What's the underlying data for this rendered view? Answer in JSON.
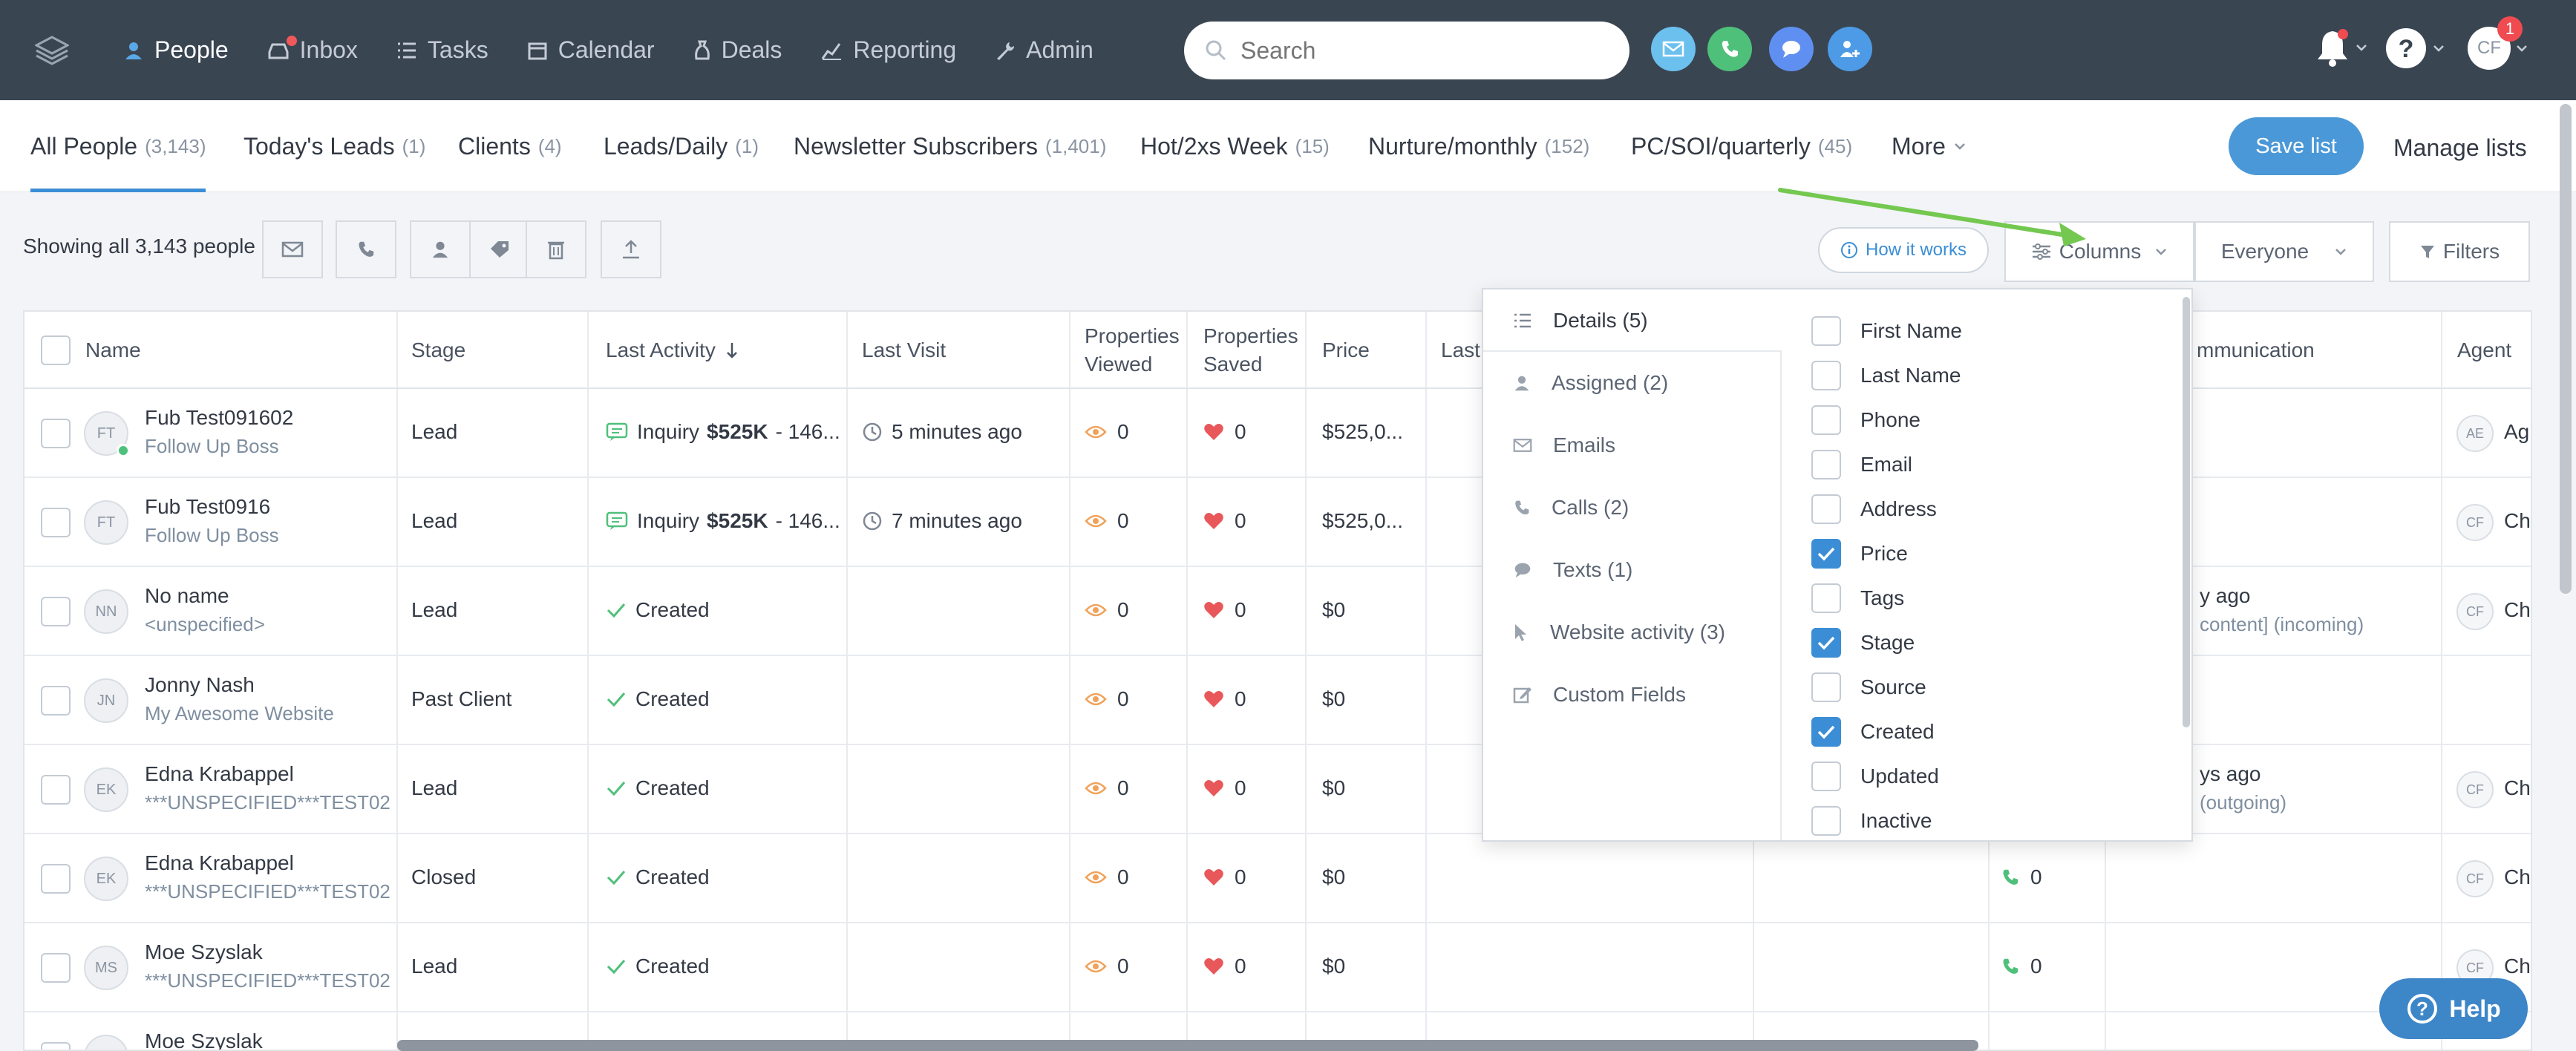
{
  "nav": {
    "items": [
      {
        "label": "People",
        "icon": "person-icon"
      },
      {
        "label": "Inbox",
        "icon": "inbox-icon"
      },
      {
        "label": "Tasks",
        "icon": "tasks-icon"
      },
      {
        "label": "Calendar",
        "icon": "calendar-icon"
      },
      {
        "label": "Deals",
        "icon": "deals-icon"
      },
      {
        "label": "Reporting",
        "icon": "reporting-icon"
      },
      {
        "label": "Admin",
        "icon": "admin-icon"
      }
    ],
    "search_placeholder": "Search",
    "avatar_initials": "CF",
    "avatar_badge": "1"
  },
  "tabs": [
    {
      "label": "All People",
      "count": "(3,143)"
    },
    {
      "label": "Today's Leads",
      "count": "(1)"
    },
    {
      "label": "Clients",
      "count": "(4)"
    },
    {
      "label": "Leads/Daily",
      "count": "(1)"
    },
    {
      "label": "Newsletter Subscribers",
      "count": "(1,401)"
    },
    {
      "label": "Hot/2xs Week",
      "count": "(15)"
    },
    {
      "label": "Nurture/monthly",
      "count": "(152)"
    },
    {
      "label": "PC/SOI/quarterly",
      "count": "(45)"
    },
    {
      "label": "More",
      "count": ""
    }
  ],
  "save_list_label": "Save list",
  "manage_lists_label": "Manage lists",
  "toolbar": {
    "showing": "Showing all 3,143 people",
    "how_it_works": "How it works",
    "columns": "Columns",
    "everyone": "Everyone",
    "filters": "Filters"
  },
  "columns": {
    "name": "Name",
    "stage": "Stage",
    "last_activity": "Last Activity",
    "last_visit": "Last Visit",
    "properties_viewed_1": "Properties",
    "properties_viewed_2": "Viewed",
    "properties_saved_1": "Properties",
    "properties_saved_2": "Saved",
    "price": "Price",
    "last_partial": "Last",
    "communication_partial": "mmunication",
    "agent": "Agent"
  },
  "rows": [
    {
      "initials": "FT",
      "name": "Fub Test091602",
      "source": "Follow Up Boss",
      "stage": "Lead",
      "activity_kind": "Inquiry",
      "activity_amount": "$525K",
      "activity_rest": "- 146...",
      "last_visit": "5 minutes ago",
      "viewed": "0",
      "saved": "0",
      "price": "$525,0...",
      "comm_1": "",
      "comm_2": "",
      "calls": "",
      "agent": "AE",
      "agent_name": "Ag",
      "online": true
    },
    {
      "initials": "FT",
      "name": "Fub Test0916",
      "source": "Follow Up Boss",
      "stage": "Lead",
      "activity_kind": "Inquiry",
      "activity_amount": "$525K",
      "activity_rest": "- 146...",
      "last_visit": "7 minutes ago",
      "viewed": "0",
      "saved": "0",
      "price": "$525,0...",
      "comm_1": "",
      "comm_2": "",
      "calls": "",
      "agent": "CF",
      "agent_name": "Ch",
      "online": false
    },
    {
      "initials": "NN",
      "name": "No name",
      "source": "<unspecified>",
      "stage": "Lead",
      "activity_kind": "Created",
      "activity_amount": "",
      "activity_rest": "",
      "last_visit": "",
      "viewed": "0",
      "saved": "0",
      "price": "$0",
      "comm_1": "y ago",
      "comm_2": "content] (incoming)",
      "calls": "",
      "agent": "CF",
      "agent_name": "Ch",
      "online": false
    },
    {
      "initials": "JN",
      "name": "Jonny Nash",
      "source": "My Awesome Website",
      "stage": "Past Client",
      "activity_kind": "Created",
      "activity_amount": "",
      "activity_rest": "",
      "last_visit": "",
      "viewed": "0",
      "saved": "0",
      "price": "$0",
      "comm_1": "",
      "comm_2": "",
      "calls": "",
      "agent": "",
      "agent_name": "",
      "online": false
    },
    {
      "initials": "EK",
      "name": "Edna Krabappel",
      "source": "***UNSPECIFIED***TEST02",
      "stage": "Lead",
      "activity_kind": "Created",
      "activity_amount": "",
      "activity_rest": "",
      "last_visit": "",
      "viewed": "0",
      "saved": "0",
      "price": "$0",
      "comm_1": "ys ago",
      "comm_2": "(outgoing)",
      "calls": "",
      "agent": "CF",
      "agent_name": "Ch",
      "online": false
    },
    {
      "initials": "EK",
      "name": "Edna Krabappel",
      "source": "***UNSPECIFIED***TEST02",
      "stage": "Closed",
      "activity_kind": "Created",
      "activity_amount": "",
      "activity_rest": "",
      "last_visit": "",
      "viewed": "0",
      "saved": "0",
      "price": "$0",
      "comm_1": "",
      "comm_2": "",
      "calls": "0",
      "agent": "CF",
      "agent_name": "Ch",
      "online": false
    },
    {
      "initials": "MS",
      "name": "Moe Szyslak",
      "source": "***UNSPECIFIED***TEST02",
      "stage": "Lead",
      "activity_kind": "Created",
      "activity_amount": "",
      "activity_rest": "",
      "last_visit": "",
      "viewed": "0",
      "saved": "0",
      "price": "$0",
      "comm_1": "",
      "comm_2": "",
      "calls": "0",
      "agent": "CF",
      "agent_name": "Ch",
      "online": false
    },
    {
      "initials": "MS",
      "name": "Moe Szyslak",
      "source": "",
      "stage": "",
      "activity_kind": "",
      "activity_amount": "",
      "activity_rest": "",
      "last_visit": "",
      "viewed": "",
      "saved": "",
      "price": "",
      "comm_1": "",
      "comm_2": "",
      "calls": "",
      "agent": "",
      "agent_name": "",
      "online": false
    }
  ],
  "columns_panel": {
    "categories": [
      {
        "label": "Details (5)",
        "icon": "list-icon"
      },
      {
        "label": "Assigned (2)",
        "icon": "person-icon"
      },
      {
        "label": "Emails",
        "icon": "email-icon"
      },
      {
        "label": "Calls (2)",
        "icon": "phone-icon"
      },
      {
        "label": "Texts (1)",
        "icon": "chat-icon"
      },
      {
        "label": "Website activity (3)",
        "icon": "cursor-icon"
      },
      {
        "label": "Custom Fields",
        "icon": "edit-icon"
      }
    ],
    "fields": [
      {
        "label": "First Name",
        "checked": false
      },
      {
        "label": "Last Name",
        "checked": false
      },
      {
        "label": "Phone",
        "checked": false
      },
      {
        "label": "Email",
        "checked": false
      },
      {
        "label": "Address",
        "checked": false
      },
      {
        "label": "Price",
        "checked": true
      },
      {
        "label": "Tags",
        "checked": false
      },
      {
        "label": "Stage",
        "checked": true
      },
      {
        "label": "Source",
        "checked": false
      },
      {
        "label": "Created",
        "checked": true
      },
      {
        "label": "Updated",
        "checked": false
      },
      {
        "label": "Inactive",
        "checked": false
      }
    ]
  },
  "help_label": "Help",
  "colors": {
    "topbar": "#3a4552",
    "accent": "#3b8ed6",
    "heart": "#e8575a",
    "eye": "#f0a25a",
    "arrow": "#74c850"
  }
}
